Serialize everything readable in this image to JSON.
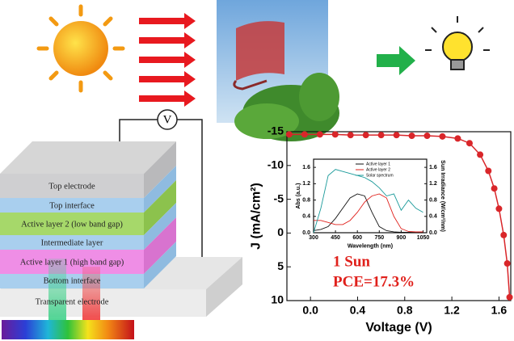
{
  "diagram": {
    "voltmeter": "V",
    "layers": [
      "Top electrode",
      "Top interface",
      "Active layer 2 (low band gap)",
      "Intermediate layer",
      "Active layer 1 (high band gap)",
      "Bottom interface",
      "Transparent electrode"
    ]
  },
  "chart_data": [
    {
      "type": "line",
      "xlabel": "Voltage (V)",
      "ylabel": "J (mA/cm²)",
      "y_inverted": true,
      "markers": true,
      "annotations": [
        "1 Sun",
        "PCE=17.3%"
      ],
      "xlim": [
        -0.2,
        1.7
      ],
      "xticks": [
        {
          "value": 0,
          "label": "0.0"
        },
        0.4,
        0.8,
        1.2,
        1.6
      ],
      "ylim": [
        -15,
        10
      ],
      "yticks": [
        -15,
        -10,
        -5,
        0,
        5,
        10
      ],
      "series": [
        {
          "color": "#d9262a",
          "x": [
            -0.18,
            -0.05,
            0.08,
            0.21,
            0.34,
            0.47,
            0.6,
            0.73,
            0.86,
            0.99,
            1.12,
            1.25,
            1.35,
            1.44,
            1.51,
            1.56,
            1.6,
            1.64,
            1.67,
            1.69
          ],
          "values": [
            -14.6,
            -14.6,
            -14.6,
            -14.6,
            -14.5,
            -14.5,
            -14.5,
            -14.5,
            -14.4,
            -14.4,
            -14.3,
            -14.0,
            -13.3,
            -11.6,
            -9.2,
            -6.6,
            -3.6,
            0.3,
            4.5,
            9.5
          ]
        }
      ]
    },
    {
      "type": "line",
      "xlabel": "Wavelength (nm)",
      "ylabel": "Abs (a.u.)",
      "y2label": "Sun Irradiance (W/cm²/nm)",
      "legend": "upper center",
      "xlim": [
        300,
        1075
      ],
      "xticks": [
        300,
        450,
        600,
        750,
        900,
        1050
      ],
      "ylim": [
        0,
        1.8
      ],
      "yticks": [
        {
          "value": 0,
          "label": "0.0"
        },
        0.4,
        0.8,
        1.2,
        1.6
      ],
      "y2lim": [
        0,
        1.8
      ],
      "y2ticks": [
        {
          "value": 0,
          "label": "0.0"
        },
        0.4,
        0.8,
        1.2,
        1.6
      ],
      "x": [
        300,
        350,
        400,
        450,
        500,
        550,
        600,
        650,
        700,
        750,
        800,
        850,
        900,
        950,
        1000,
        1050
      ],
      "series": [
        {
          "name": "Active layer 1",
          "color": "#111111",
          "values": [
            0.05,
            0.08,
            0.15,
            0.35,
            0.6,
            0.85,
            0.95,
            0.9,
            0.5,
            0.15,
            0.05,
            0.02,
            0.01,
            0.01,
            0.01,
            0.01
          ]
        },
        {
          "name": "Active layer 2",
          "color": "#e0201b",
          "values": [
            0.3,
            0.3,
            0.25,
            0.2,
            0.2,
            0.3,
            0.5,
            0.75,
            0.9,
            0.95,
            0.85,
            0.4,
            0.1,
            0.03,
            0.02,
            0.02
          ]
        },
        {
          "name": "Solar spectrum",
          "color": "#1a9a9a",
          "axis": "y2",
          "values": [
            0.0,
            0.6,
            1.4,
            1.55,
            1.5,
            1.45,
            1.4,
            1.35,
            1.25,
            1.1,
            0.9,
            0.95,
            0.55,
            0.8,
            0.6,
            0.5
          ]
        }
      ]
    }
  ]
}
